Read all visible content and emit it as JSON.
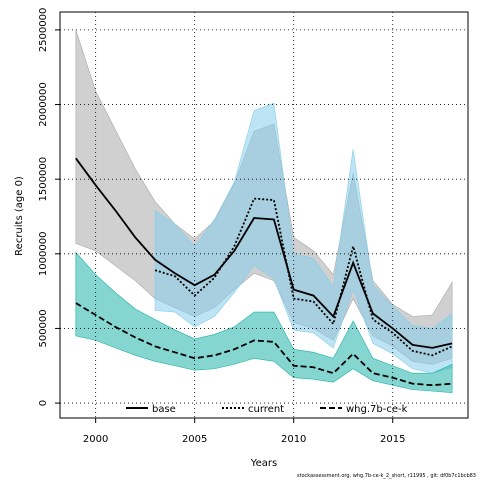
{
  "chart_data": {
    "type": "line",
    "xlabel": "Years",
    "ylabel": "Recruits (age 0)",
    "xlim": [
      1998.2,
      2018.8
    ],
    "ylim": [
      -100000,
      2620000
    ],
    "xticks": [
      2000,
      2005,
      2010,
      2015
    ],
    "xtick_labels": [
      "2000",
      "2005",
      "2010",
      "2015"
    ],
    "yticks": [
      0,
      500000,
      1000000,
      1500000,
      2000000,
      2500000
    ],
    "ytick_labels": [
      "0",
      "500000",
      "1000000",
      "1500000",
      "2000000",
      "2500000"
    ],
    "grid": true,
    "legend_position": "bottom",
    "series": [
      {
        "name": "base",
        "color": "#000000",
        "band_color": "#a9a9a9",
        "line_style": "solid",
        "x": [
          1999,
          2000,
          2001,
          2002,
          2003,
          2004,
          2005,
          2006,
          2007,
          2008,
          2009,
          2010,
          2011,
          2012,
          2013,
          2014,
          2015,
          2016,
          2017,
          2018
        ],
        "values": [
          1640000,
          1460000,
          1290000,
          1110000,
          960000,
          870000,
          790000,
          860000,
          1020000,
          1240000,
          1230000,
          760000,
          720000,
          580000,
          940000,
          600000,
          500000,
          390000,
          370000,
          400000
        ],
        "lower": [
          1070000,
          1020000,
          920000,
          820000,
          700000,
          640000,
          580000,
          640000,
          760000,
          870000,
          820000,
          540000,
          500000,
          420000,
          700000,
          450000,
          380000,
          280000,
          260000,
          300000
        ],
        "upper": [
          2500000,
          2090000,
          1830000,
          1570000,
          1350000,
          1200000,
          1100000,
          1220000,
          1470000,
          1820000,
          1870000,
          1110000,
          1020000,
          860000,
          1540000,
          820000,
          660000,
          580000,
          590000,
          810000
        ]
      },
      {
        "name": "current",
        "color": "#000000",
        "band_color": "#87ceeb",
        "line_style": "dotted",
        "x": [
          2003,
          2004,
          2005,
          2006,
          2007,
          2008,
          2009,
          2010,
          2011,
          2012,
          2013,
          2014,
          2015,
          2016,
          2017,
          2018
        ],
        "values": [
          890000,
          850000,
          720000,
          840000,
          1050000,
          1370000,
          1360000,
          700000,
          680000,
          530000,
          1050000,
          560000,
          470000,
          350000,
          320000,
          380000
        ],
        "lower": [
          620000,
          610000,
          510000,
          580000,
          740000,
          920000,
          830000,
          490000,
          470000,
          370000,
          760000,
          400000,
          330000,
          230000,
          200000,
          240000
        ],
        "upper": [
          1290000,
          1200000,
          1050000,
          1230000,
          1480000,
          1960000,
          2010000,
          1000000,
          970000,
          780000,
          1700000,
          790000,
          650000,
          520000,
          500000,
          600000
        ]
      },
      {
        "name": "whg.7b-ce-k",
        "color": "#000000",
        "band_color": "#20b2aa",
        "line_style": "dashed",
        "x": [
          1999,
          2000,
          2001,
          2002,
          2003,
          2004,
          2005,
          2006,
          2007,
          2008,
          2009,
          2010,
          2011,
          2012,
          2013,
          2014,
          2015,
          2016,
          2017,
          2018
        ],
        "values": [
          670000,
          590000,
          510000,
          440000,
          380000,
          340000,
          300000,
          320000,
          360000,
          420000,
          410000,
          250000,
          240000,
          200000,
          330000,
          200000,
          170000,
          130000,
          120000,
          130000
        ],
        "lower": [
          450000,
          420000,
          370000,
          320000,
          280000,
          250000,
          220000,
          230000,
          260000,
          300000,
          280000,
          170000,
          160000,
          140000,
          230000,
          150000,
          120000,
          90000,
          80000,
          70000
        ],
        "upper": [
          1010000,
          860000,
          740000,
          630000,
          560000,
          490000,
          430000,
          460000,
          510000,
          610000,
          610000,
          360000,
          340000,
          300000,
          550000,
          300000,
          250000,
          200000,
          200000,
          260000
        ]
      }
    ]
  },
  "footer": "stockassessment.org, whg.7b-ce-k_2_short, r11995 , git: df0b7c1bcb83"
}
